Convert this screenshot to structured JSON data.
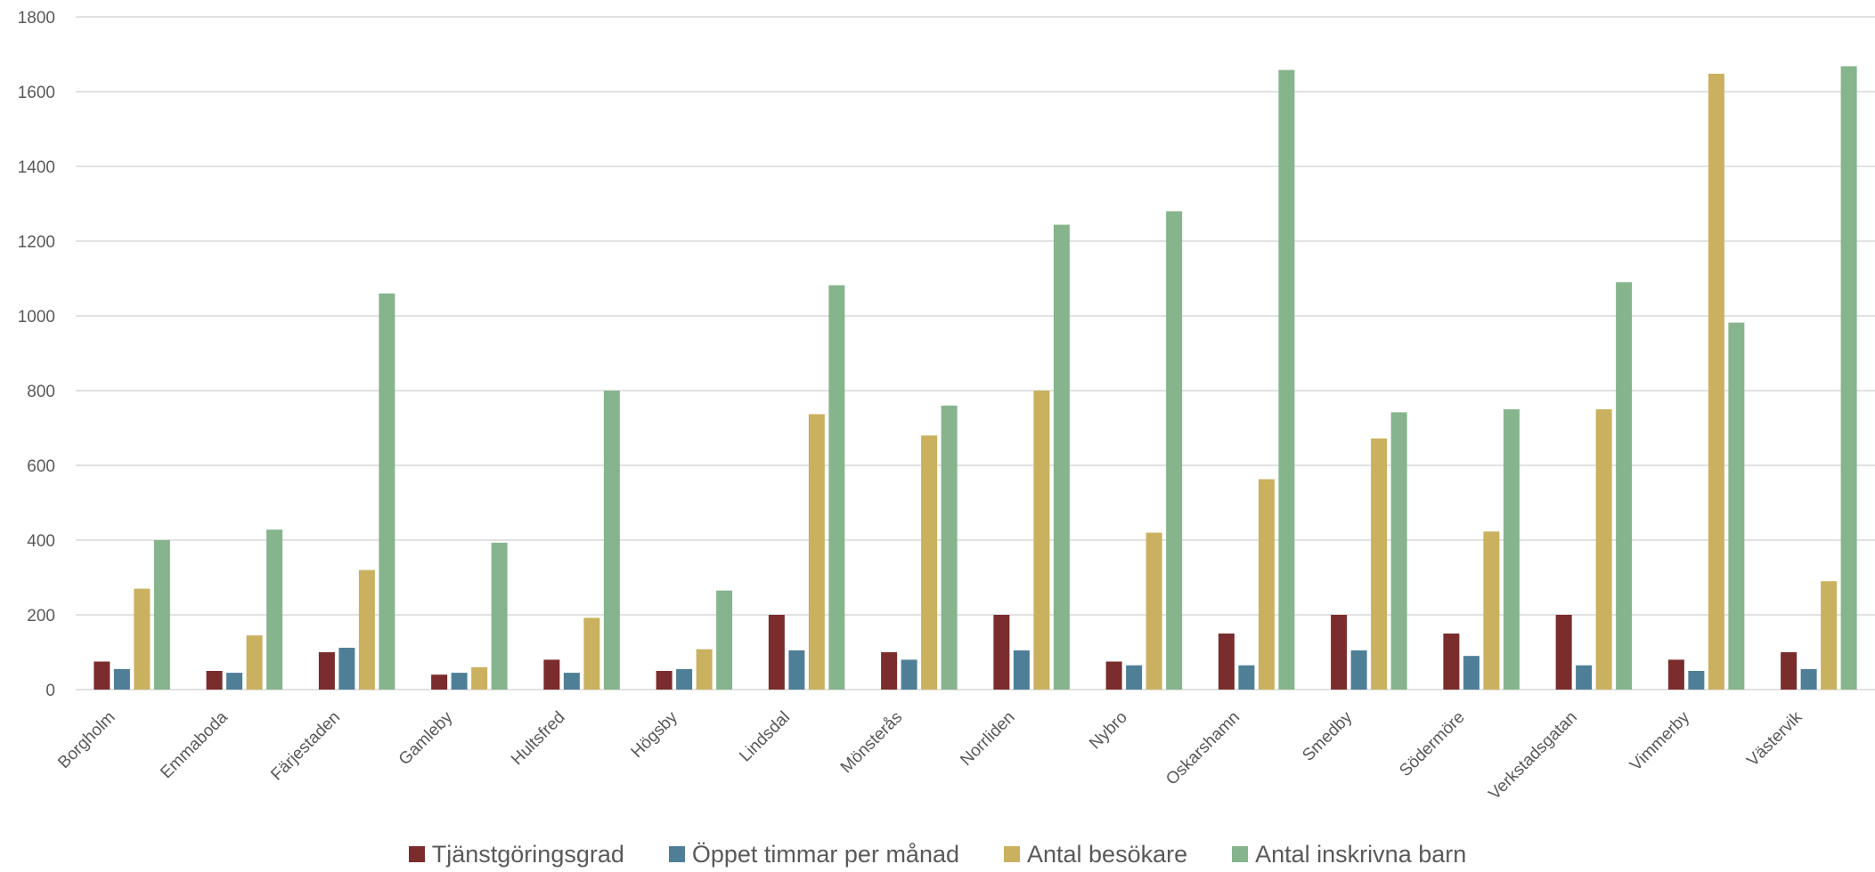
{
  "chart_data": {
    "type": "bar",
    "categories": [
      "Borgholm",
      "Emmaboda",
      "Färjestaden",
      "Gamleby",
      "Hultsfred",
      "Högsby",
      "Lindsdal",
      "Mönsterås",
      "Norrliden",
      "Nybro",
      "Oskarshamn",
      "Smedby",
      "Södermöre",
      "Verkstadsgatan",
      "Vimmerby",
      "Västervik"
    ],
    "series": [
      {
        "name": "Tjänstgöringsgrad",
        "color": "#7B2C2C",
        "values": [
          75,
          50,
          100,
          40,
          80,
          50,
          200,
          100,
          200,
          75,
          150,
          200,
          150,
          200,
          80,
          100
        ]
      },
      {
        "name": "Öppet timmar per månad",
        "color": "#4E7F97",
        "values": [
          55,
          45,
          112,
          45,
          45,
          55,
          105,
          80,
          105,
          65,
          65,
          105,
          90,
          65,
          50,
          55
        ]
      },
      {
        "name": "Antal besökare",
        "color": "#C9B160",
        "values": [
          270,
          145,
          320,
          60,
          192,
          108,
          737,
          680,
          800,
          420,
          563,
          672,
          423,
          750,
          1648,
          290
        ]
      },
      {
        "name": "Antal inskrivna barn",
        "color": "#86B48D",
        "values": [
          400,
          428,
          1060,
          393,
          800,
          265,
          1082,
          760,
          1244,
          1280,
          1658,
          742,
          750,
          1090,
          982,
          1668
        ]
      }
    ],
    "ylim": [
      0,
      1800
    ],
    "yticks": [
      "0",
      "200",
      "400",
      "600",
      "800",
      "1000",
      "1200",
      "1400",
      "1600",
      "1800"
    ],
    "grid": true,
    "legend_position": "bottom"
  }
}
